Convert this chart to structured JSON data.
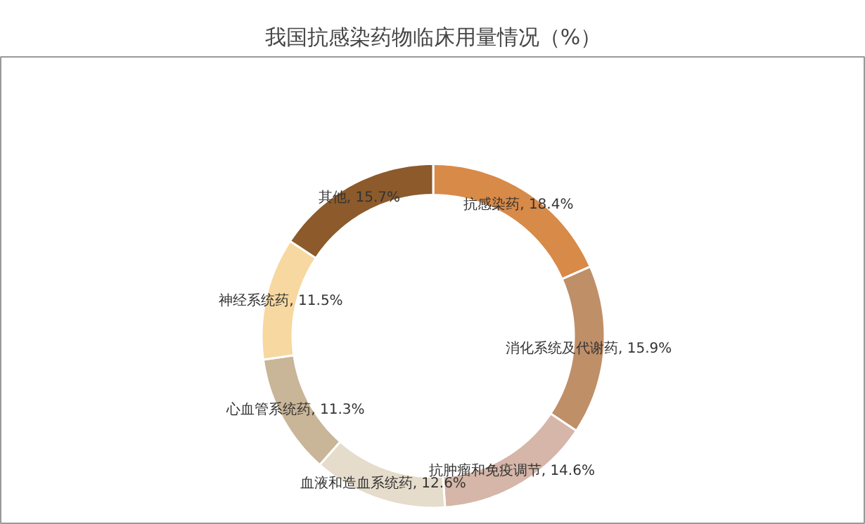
{
  "chart_data": {
    "type": "donut",
    "title": "我国抗感染药物临床用量情况（%）",
    "categories": [
      "抗感染药",
      "消化系统及代谢药",
      "抗肿瘤和免疫调节",
      "血液和造血系统药",
      "心血管系统药",
      "神经系统药",
      "其他"
    ],
    "values": [
      18.4,
      15.9,
      14.6,
      12.6,
      11.3,
      11.5,
      15.7
    ],
    "value_labels": [
      "18.4%",
      "15.9%",
      "14.6%",
      "12.6%",
      "11.3%",
      "11.5%",
      "15.7%"
    ],
    "colors": [
      "#d88a48",
      "#bf8f68",
      "#d5b6a8",
      "#e5dccb",
      "#c9b597",
      "#f6d8a0",
      "#8c5a2b"
    ]
  }
}
